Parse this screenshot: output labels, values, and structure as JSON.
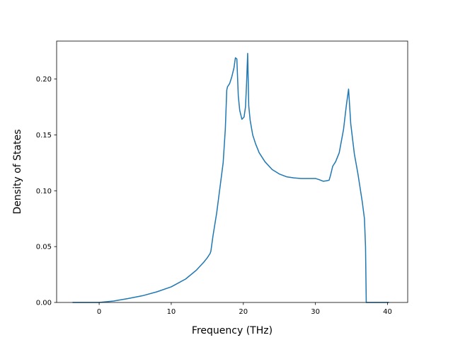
{
  "chart_data": {
    "type": "line",
    "title": "",
    "xlabel": "Frequency (THz)",
    "ylabel": "Density of States",
    "xlim": [
      -5.9,
      42.8
    ],
    "ylim": [
      0.0,
      0.234
    ],
    "xticks": [
      0,
      10,
      20,
      30,
      40
    ],
    "xtick_labels": [
      "0",
      "10",
      "20",
      "30",
      "40"
    ],
    "yticks": [
      0.0,
      0.05,
      0.1,
      0.15,
      0.2
    ],
    "ytick_labels": [
      "0.00",
      "0.05",
      "0.10",
      "0.15",
      "0.20"
    ],
    "grid": false,
    "legend": "none",
    "line_color": "#1f77b4",
    "series": [
      {
        "x": [
          -3.7,
          0,
          2,
          4,
          6,
          8,
          10,
          12,
          13.5,
          14.5,
          15.0,
          15.4,
          15.5,
          15.8,
          16.3,
          16.8,
          17.2,
          17.5,
          17.7,
          17.8,
          18.1,
          18.4,
          18.7,
          18.9,
          19.1,
          19.3,
          19.5,
          19.8,
          20.1,
          20.3,
          20.45,
          20.6,
          20.75,
          20.95,
          21.3,
          21.7,
          22.2,
          23,
          24,
          25,
          26,
          27,
          28,
          29,
          30,
          30.5,
          31.1,
          31.6,
          31.9,
          32.1,
          32.4,
          32.8,
          33.3,
          33.9,
          34.3,
          34.6,
          34.9,
          35.4,
          35.9,
          36.5,
          36.8,
          36.95,
          37.05,
          38,
          40.2
        ],
        "y": [
          0.0,
          0.0,
          0.0013,
          0.0035,
          0.006,
          0.0095,
          0.014,
          0.021,
          0.029,
          0.036,
          0.04,
          0.044,
          0.046,
          0.06,
          0.08,
          0.105,
          0.125,
          0.155,
          0.19,
          0.193,
          0.196,
          0.202,
          0.21,
          0.219,
          0.218,
          0.185,
          0.172,
          0.164,
          0.166,
          0.175,
          0.196,
          0.223,
          0.176,
          0.163,
          0.15,
          0.142,
          0.134,
          0.126,
          0.119,
          0.115,
          0.1125,
          0.1115,
          0.111,
          0.111,
          0.111,
          0.11,
          0.1085,
          0.109,
          0.1095,
          0.114,
          0.122,
          0.126,
          0.134,
          0.155,
          0.177,
          0.191,
          0.16,
          0.133,
          0.115,
          0.09,
          0.075,
          0.05,
          0.0,
          0.0,
          0.0
        ]
      }
    ]
  }
}
